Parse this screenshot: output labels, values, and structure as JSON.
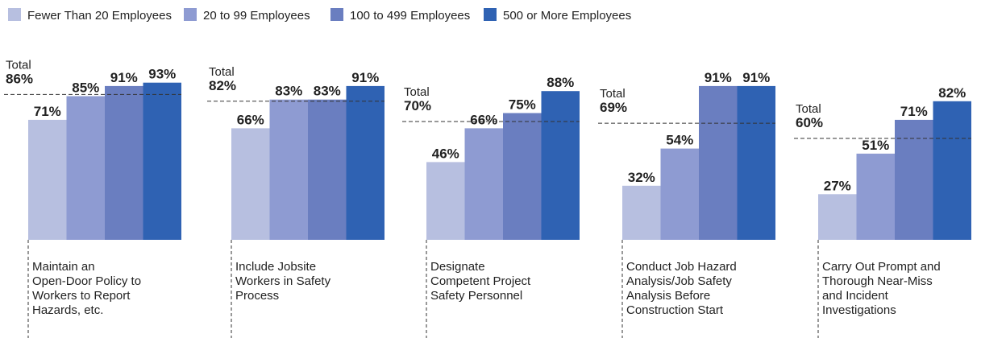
{
  "chart_data": {
    "type": "bar",
    "categories": [
      "Maintain an\nOpen-Door Policy to\nWorkers to Report\nHazards, etc.",
      "Include Jobsite\nWorkers in Safety\nProcess",
      "Designate\nCompetent Project\nSafety Personnel",
      "Conduct Job Hazard\nAnalysis/Job Safety\nAnalysis Before\nConstruction Start",
      "Carry Out Prompt and\nThorough Near-Miss\nand Incident\nInvestigations"
    ],
    "series": [
      {
        "name": "Fewer Than 20 Employees",
        "color": "#b7bfe0",
        "values": [
          71,
          66,
          46,
          32,
          27
        ],
        "value_labels": [
          "71%",
          "66%",
          "46%",
          "32%",
          "27%"
        ]
      },
      {
        "name": "20 to 99 Employees",
        "color": "#8e9bd2",
        "values": [
          85,
          83,
          66,
          54,
          51
        ],
        "value_labels": [
          "85%",
          "83%",
          "66%",
          "54%",
          "51%"
        ]
      },
      {
        "name": "100 to 499 Employees",
        "color": "#6a7ec0",
        "values": [
          91,
          83,
          75,
          91,
          71
        ],
        "value_labels": [
          "91%",
          "83%",
          "75%",
          "91%",
          "71%"
        ]
      },
      {
        "name": "500 or More Employees",
        "color": "#2f62b3",
        "values": [
          93,
          91,
          88,
          91,
          82
        ],
        "value_labels": [
          "93%",
          "91%",
          "88%",
          "91%",
          "82%"
        ]
      }
    ],
    "total_label": "Total",
    "totals": [
      86,
      82,
      70,
      69,
      60
    ],
    "totals_labels": [
      "86%",
      "82%",
      "70%",
      "69%",
      "60%"
    ]
  }
}
